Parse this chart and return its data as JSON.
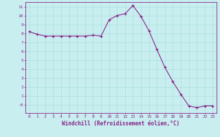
{
  "x": [
    0,
    1,
    2,
    3,
    4,
    5,
    6,
    7,
    8,
    9,
    10,
    11,
    12,
    13,
    14,
    15,
    16,
    17,
    18,
    19,
    20,
    21,
    22,
    23
  ],
  "y": [
    8.2,
    7.9,
    7.7,
    7.7,
    7.7,
    7.7,
    7.7,
    7.7,
    7.8,
    7.7,
    9.5,
    10.0,
    10.2,
    11.1,
    9.9,
    8.3,
    6.2,
    4.2,
    2.6,
    1.2,
    -0.1,
    -0.3,
    -0.1,
    -0.1
  ],
  "line_color": "#882288",
  "marker": "+",
  "marker_color": "#882288",
  "bg_color": "#c8eef0",
  "grid_color": "#aadddd",
  "xlabel": "Windchill (Refroidissement éolien,°C)",
  "xlabel_color": "#882288",
  "tick_color": "#882288",
  "spine_color": "#882288",
  "ylim": [
    -0.9,
    11.5
  ],
  "xlim": [
    -0.5,
    23.5
  ],
  "yticks": [
    0,
    1,
    2,
    3,
    4,
    5,
    6,
    7,
    8,
    9,
    10,
    11
  ],
  "ytick_labels": [
    "-0",
    "1",
    "2",
    "3",
    "4",
    "5",
    "6",
    "7",
    "8",
    "9",
    "10",
    "11"
  ],
  "xticks": [
    0,
    1,
    2,
    3,
    4,
    5,
    6,
    7,
    8,
    9,
    10,
    11,
    12,
    13,
    14,
    15,
    16,
    17,
    18,
    19,
    20,
    21,
    22,
    23
  ]
}
